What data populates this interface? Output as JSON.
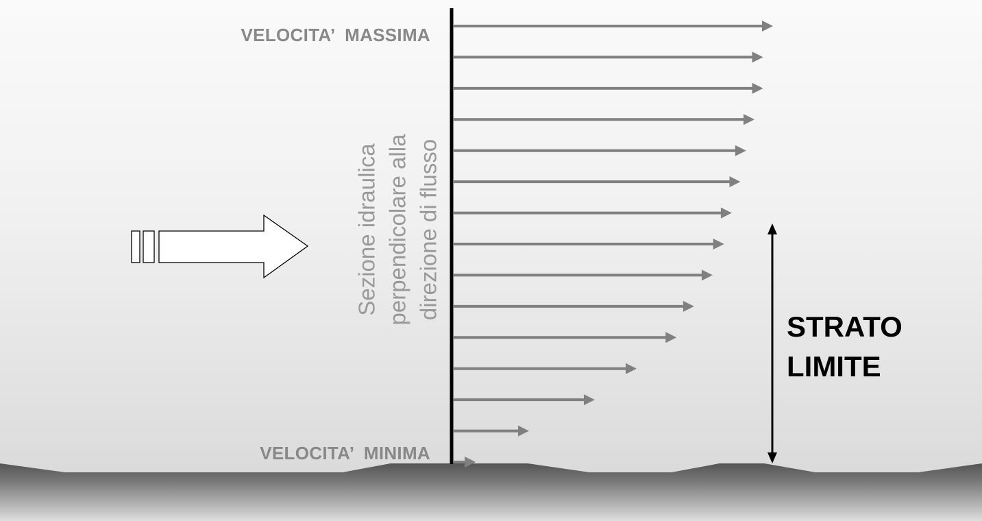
{
  "labels": {
    "max_velocity": "VELOCITA’  MASSIMA",
    "min_velocity": "VELOCITA’  MINIMA",
    "section_lines": [
      "Sezione idraulica",
      "perpendicolare alla",
      "direzione di flusso"
    ],
    "boundary_layer_lines": [
      "STRATO",
      "LIMITE"
    ]
  },
  "velocity_profile": {
    "relative_lengths": [
      1.0,
      0.969,
      0.969,
      0.942,
      0.916,
      0.898,
      0.871,
      0.847,
      0.811,
      0.753,
      0.698,
      0.573,
      0.442,
      0.236,
      0.069
    ]
  },
  "colors": {
    "arrow": "#808080",
    "section_line": "#000000",
    "label_text": "#888888",
    "boundary_text": "#000000",
    "flow_arrow_fill": "#ffffff",
    "ground_top": "#555555",
    "ground_bottom": "#dedede"
  },
  "icons": {
    "flow_direction": "block-arrow-right",
    "boundary_extent": "double-headed-arrow-vertical"
  }
}
